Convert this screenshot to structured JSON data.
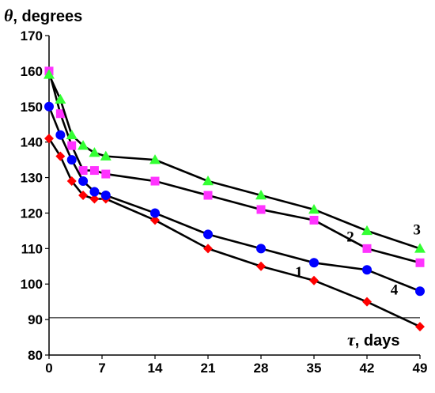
{
  "chart_data": {
    "type": "line",
    "ylabel_symbol": "θ",
    "ylabel_text": ", degrees",
    "xlabel_symbol": "τ",
    "xlabel_text": ", days",
    "xlim": [
      0,
      49
    ],
    "ylim": [
      80,
      170
    ],
    "xticks": [
      0,
      7,
      14,
      21,
      28,
      35,
      42,
      49
    ],
    "yticks": [
      80,
      90,
      100,
      110,
      120,
      130,
      140,
      150,
      160,
      170
    ],
    "reference_line_y": 90.5,
    "grid": false,
    "series": [
      {
        "name": "1",
        "marker": "diamond",
        "color": "#ff0000",
        "x": [
          0,
          1.5,
          3,
          4.5,
          6,
          7.5,
          14,
          21,
          28,
          35,
          42,
          49
        ],
        "y": [
          141,
          136,
          129,
          125,
          124,
          124,
          118,
          110,
          105,
          101,
          95,
          88
        ]
      },
      {
        "name": "2",
        "marker": "square",
        "color": "#ff33ff",
        "x": [
          0,
          1.5,
          3,
          4.5,
          6,
          7.5,
          14,
          21,
          28,
          35,
          42,
          49
        ],
        "y": [
          160,
          148,
          139,
          132,
          132,
          131,
          129,
          125,
          121,
          118,
          110,
          106
        ]
      },
      {
        "name": "3",
        "marker": "triangle",
        "color": "#33ff33",
        "x": [
          0,
          1.5,
          3,
          4.5,
          6,
          7.5,
          14,
          21,
          28,
          35,
          42,
          49
        ],
        "y": [
          159,
          152,
          142,
          139,
          137,
          136,
          135,
          129,
          125,
          121,
          115,
          110
        ]
      },
      {
        "name": "4",
        "marker": "circle",
        "color": "#0000ff",
        "x": [
          0,
          1.5,
          3,
          4.5,
          6,
          7.5,
          14,
          21,
          28,
          35,
          42,
          49
        ],
        "y": [
          150,
          142,
          135,
          129,
          126,
          125,
          120,
          114,
          110,
          106,
          104,
          98
        ]
      }
    ],
    "series_labels": [
      {
        "text": "1",
        "x": 33,
        "y": 102
      },
      {
        "text": "2",
        "x": 39.8,
        "y": 112
      },
      {
        "text": "3",
        "x": 48.6,
        "y": 114
      },
      {
        "text": "4",
        "x": 45.6,
        "y": 97
      }
    ]
  }
}
